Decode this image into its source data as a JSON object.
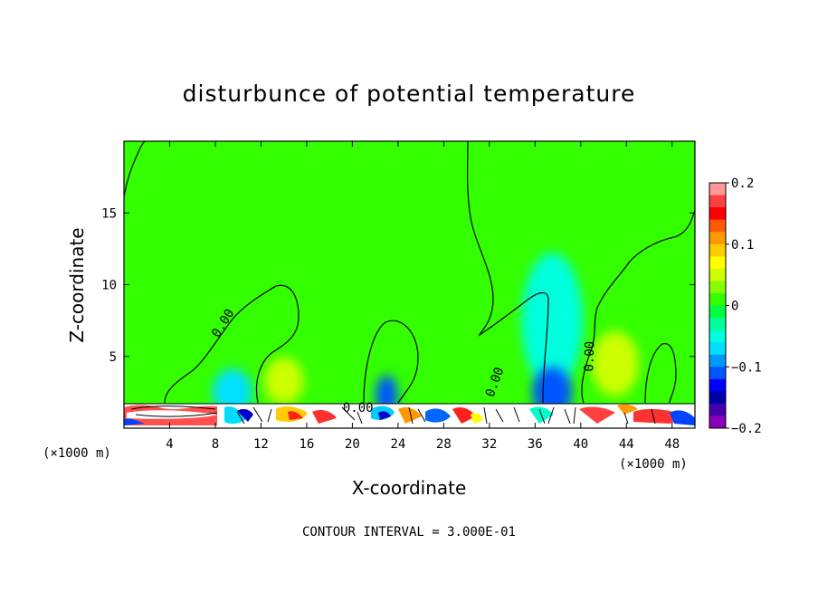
{
  "chart_data": {
    "type": "heatmap",
    "title": "disturbunce of potential temperature",
    "xlabel": "X-coordinate",
    "ylabel": "Z-coordinate",
    "x_unit_left": "(×1000 m)",
    "x_unit_right": "(×1000 m)",
    "xlim": [
      0,
      50
    ],
    "ylim": [
      0,
      20
    ],
    "xticks": [
      4,
      8,
      12,
      16,
      20,
      24,
      28,
      32,
      36,
      40,
      44,
      48
    ],
    "yticks": [
      5,
      10,
      15
    ],
    "contour_interval_text": "CONTOUR INTERVAL = 3.000E-01",
    "contour_labels": [
      {
        "text": "0.00",
        "x": 8.7,
        "z": 7.3
      },
      {
        "text": "0.00",
        "x": 20.5,
        "z": 1.4
      },
      {
        "text": "0.00",
        "x": 32.5,
        "z": 3.2
      },
      {
        "text": "0.00",
        "x": 40.8,
        "z": 5.0
      }
    ],
    "colorbar": {
      "min": -0.2,
      "max": 0.2,
      "ticks": [
        0.2,
        0.1,
        0,
        -0.1,
        -0.2
      ],
      "tick_labels": [
        "0.2",
        "0.1",
        "0",
        "−0.1",
        "−0.2"
      ],
      "colors_top_to_bottom": [
        "#ff9999",
        "#ff4040",
        "#ff0000",
        "#ff5a00",
        "#ff9900",
        "#ffcc00",
        "#ffff00",
        "#ccff00",
        "#88ff00",
        "#33ff00",
        "#00ff40",
        "#00ff99",
        "#00ffdd",
        "#00e0ff",
        "#0099ff",
        "#0055ff",
        "#0000ff",
        "#0000aa",
        "#4400aa",
        "#8800bb"
      ]
    },
    "background_value": 0.02,
    "features": [
      {
        "kind": "blob",
        "x": 9.5,
        "z": 2.5,
        "value": -0.06
      },
      {
        "kind": "blob",
        "x": 14,
        "z": 3.3,
        "value": 0.05
      },
      {
        "kind": "blob",
        "x": 23,
        "z": 2.3,
        "value": -0.1
      },
      {
        "kind": "blob",
        "x": 37.5,
        "z": 7.5,
        "value": -0.05
      },
      {
        "kind": "blob",
        "x": 37.5,
        "z": 2.5,
        "value": -0.1
      },
      {
        "kind": "blob",
        "x": 43,
        "z": 4.5,
        "value": 0.05
      }
    ]
  }
}
